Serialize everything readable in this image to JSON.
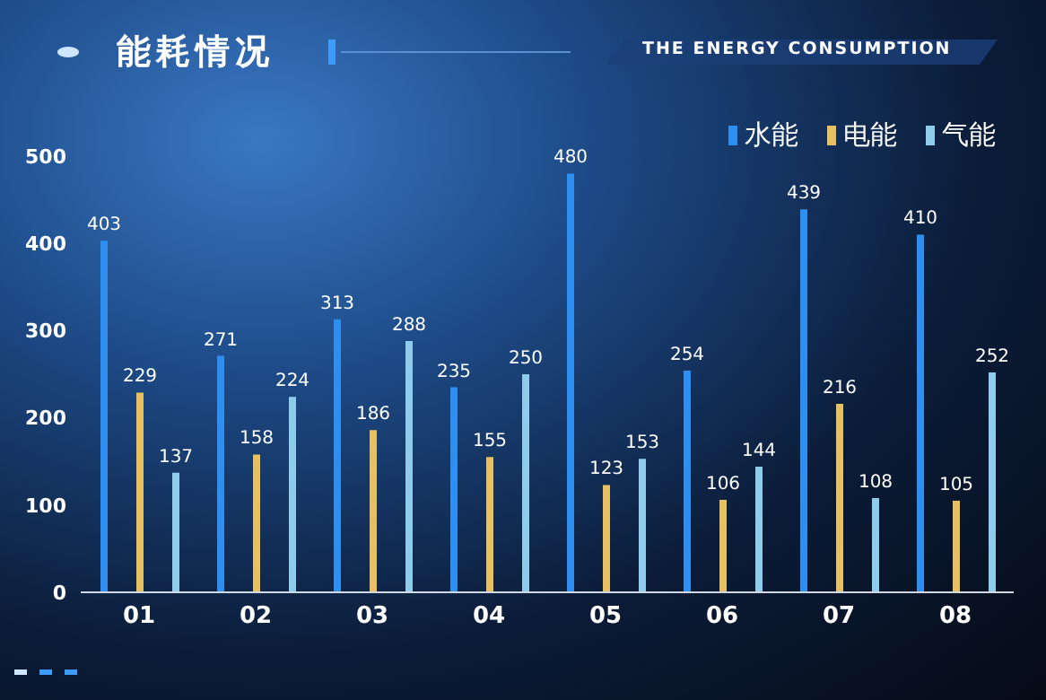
{
  "chart_data": {
    "type": "bar",
    "title": "能耗情况",
    "subtitle": "THE ENERGY CONSUMPTION",
    "categories": [
      "01",
      "02",
      "03",
      "04",
      "05",
      "06",
      "07",
      "08"
    ],
    "series": [
      {
        "name": "水能",
        "color": "#2f8ff0",
        "values": [
          403,
          271,
          313,
          235,
          480,
          254,
          439,
          410
        ]
      },
      {
        "name": "电能",
        "color": "#e6c062",
        "values": [
          229,
          158,
          186,
          155,
          123,
          106,
          216,
          105
        ]
      },
      {
        "name": "气能",
        "color": "#8fcbea",
        "values": [
          137,
          224,
          288,
          250,
          153,
          144,
          108,
          252
        ]
      }
    ],
    "ylim": [
      0,
      500
    ],
    "yticks": [
      0,
      100,
      200,
      300,
      400,
      500
    ],
    "legend": "top right",
    "data_labels": true
  }
}
